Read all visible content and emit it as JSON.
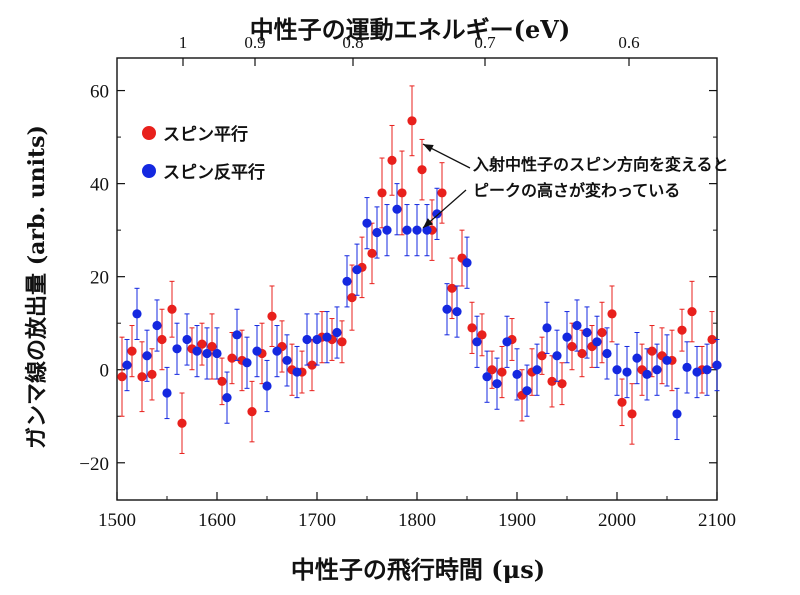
{
  "chart_data": {
    "type": "scatter",
    "title": "中性子の運動エネルギー(eV)",
    "xlabel": "中性子の飛行時間 (μs)",
    "ylabel": "ガンマ線の放出量 (arb. units)",
    "xlim": [
      1500,
      2100
    ],
    "ylim": [
      -28,
      67
    ],
    "x_ticks": [
      1500,
      1600,
      1700,
      1800,
      1900,
      2000,
      2100
    ],
    "y_ticks": [
      -20,
      0,
      20,
      40,
      60
    ],
    "top_axis": {
      "label": "中性子の運動エネルギー(eV)",
      "tick_labels": [
        "1",
        "0.9",
        "0.8",
        "0.7",
        "0.6"
      ],
      "tick_positions_us": [
        1566,
        1638,
        1736,
        1868,
        2012
      ]
    },
    "grid": false,
    "legend_placement": "top-left",
    "annotation": {
      "lines": [
        "入射中性子のスピン方向を変えると",
        "ピークの高さが変わっている"
      ],
      "arrow_targets": [
        [
          1800,
          48.5
        ],
        [
          1800,
          30.5
        ]
      ]
    },
    "series": [
      {
        "name": "スピン平行",
        "color": "#e8201c",
        "x": [
          1505,
          1515,
          1525,
          1535,
          1545,
          1555,
          1565,
          1575,
          1585,
          1595,
          1605,
          1615,
          1625,
          1635,
          1645,
          1655,
          1665,
          1675,
          1685,
          1695,
          1705,
          1715,
          1725,
          1735,
          1745,
          1755,
          1765,
          1775,
          1785,
          1795,
          1805,
          1815,
          1825,
          1835,
          1845,
          1855,
          1865,
          1875,
          1885,
          1895,
          1905,
          1915,
          1925,
          1935,
          1945,
          1955,
          1965,
          1975,
          1985,
          1995,
          2005,
          2015,
          2025,
          2035,
          2045,
          2055,
          2065,
          2075,
          2085,
          2095
        ],
        "y": [
          -1.5,
          4,
          -1.5,
          -1,
          6.5,
          13,
          -11.5,
          4.5,
          5.5,
          5,
          -2.5,
          2.5,
          2,
          -9,
          3.5,
          11.5,
          5,
          0,
          -0.5,
          1,
          7,
          6.5,
          6,
          15.5,
          22,
          25,
          38,
          45,
          38,
          53.5,
          43,
          30,
          38,
          17.5,
          24,
          9,
          7.5,
          0,
          -0.5,
          6.5,
          -5.5,
          -0.5,
          3,
          -2.5,
          -3,
          5,
          3.5,
          5,
          8,
          12,
          -7,
          -9.5,
          0,
          4,
          3,
          2,
          8.5,
          12.5,
          0,
          6.5
        ],
        "err": [
          8.5,
          5.5,
          7.5,
          5.5,
          6.5,
          6,
          6.5,
          4.5,
          4.5,
          7,
          5,
          5.5,
          6.5,
          6.5,
          6.5,
          6.5,
          5.5,
          5.5,
          4.5,
          5.5,
          5.5,
          4.5,
          4.5,
          7,
          6.5,
          6.5,
          7.5,
          7.5,
          9,
          7.5,
          6.5,
          6.5,
          6.5,
          6.5,
          6,
          5.5,
          4.5,
          4,
          5.5,
          4.5,
          5.5,
          5,
          4,
          5.5,
          4.5,
          5,
          5,
          4.5,
          6.5,
          6,
          5,
          6.5,
          5.5,
          5.5,
          6,
          6.5,
          4.5,
          6.5,
          5,
          6
        ]
      },
      {
        "name": "スピン反平行",
        "color": "#1428e0",
        "x": [
          1510,
          1520,
          1530,
          1540,
          1550,
          1560,
          1570,
          1580,
          1590,
          1600,
          1610,
          1620,
          1630,
          1640,
          1650,
          1660,
          1670,
          1680,
          1690,
          1700,
          1710,
          1720,
          1730,
          1740,
          1750,
          1760,
          1770,
          1780,
          1790,
          1800,
          1810,
          1820,
          1830,
          1840,
          1850,
          1860,
          1870,
          1880,
          1890,
          1900,
          1910,
          1920,
          1930,
          1940,
          1950,
          1960,
          1970,
          1980,
          1990,
          2000,
          2010,
          2020,
          2030,
          2040,
          2050,
          2060,
          2070,
          2080,
          2090,
          2100
        ],
        "y": [
          1,
          12,
          3,
          9.5,
          -5,
          4.5,
          6.5,
          4,
          3.5,
          3.5,
          -6,
          7.5,
          1.5,
          4,
          -3.5,
          4,
          2,
          -0.5,
          6.5,
          6.5,
          7,
          8,
          19,
          21.5,
          31.5,
          29.5,
          30,
          34.5,
          30,
          30,
          30,
          33.5,
          13,
          12.5,
          23,
          6,
          -1.5,
          -3,
          6,
          -1,
          -4.5,
          0,
          9,
          3,
          7,
          9.5,
          8,
          6,
          3.5,
          0,
          -0.5,
          2.5,
          -1,
          0,
          2,
          -9.5,
          0.5,
          -0.5,
          0,
          1
        ]
      }
    ]
  }
}
